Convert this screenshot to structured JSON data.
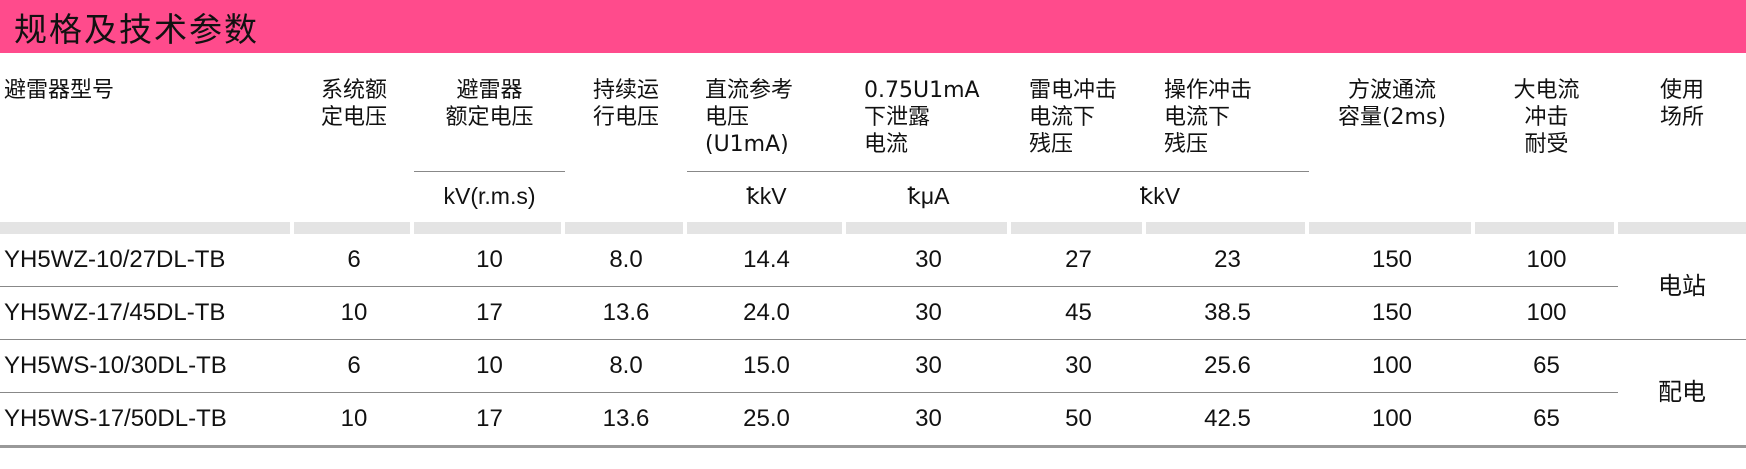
{
  "title": "规格及技术参数",
  "headers": [
    "避雷器型号",
    "系统额\n定电压",
    "避雷器\n额定电压",
    "持续运\n行电压",
    "直流参考\n电压\n(U1mA)",
    "0.75U1mA\n下泄露\n电流",
    "雷电冲击\n电流下\n残压",
    "操作冲击\n电流下\n残压",
    "方波通流\n容量(2ms)",
    "大电流\n冲击\n耐受",
    "使用\n场所"
  ],
  "units": {
    "rated_voltage": "kV(r.m.s)",
    "dc_ref": "ꝁkV",
    "leakage": "ꝁμA",
    "residual": "ꝁkV"
  },
  "rows": [
    {
      "model": "YH5WZ-10/27DL-TB",
      "system": "6",
      "rated": "10",
      "continuous": "8.0",
      "dc_ref": "14.4",
      "leakage": "30",
      "lightning": "27",
      "switching": "23",
      "square_wave": "150",
      "high_current": "100"
    },
    {
      "model": "YH5WZ-17/45DL-TB",
      "system": "10",
      "rated": "17",
      "continuous": "13.6",
      "dc_ref": "24.0",
      "leakage": "30",
      "lightning": "45",
      "switching": "38.5",
      "square_wave": "150",
      "high_current": "100"
    },
    {
      "model": "YH5WS-10/30DL-TB",
      "system": "6",
      "rated": "10",
      "continuous": "8.0",
      "dc_ref": "15.0",
      "leakage": "30",
      "lightning": "30",
      "switching": "25.6",
      "square_wave": "100",
      "high_current": "65"
    },
    {
      "model": "YH5WS-17/50DL-TB",
      "system": "10",
      "rated": "17",
      "continuous": "13.6",
      "dc_ref": "25.0",
      "leakage": "30",
      "lightning": "50",
      "switching": "42.5",
      "square_wave": "100",
      "high_current": "65"
    }
  ],
  "sites": [
    "电站",
    "配电"
  ],
  "colors": {
    "banner": "#ff4b8c",
    "bar": "#e4e4e4",
    "rule": "#888888"
  }
}
